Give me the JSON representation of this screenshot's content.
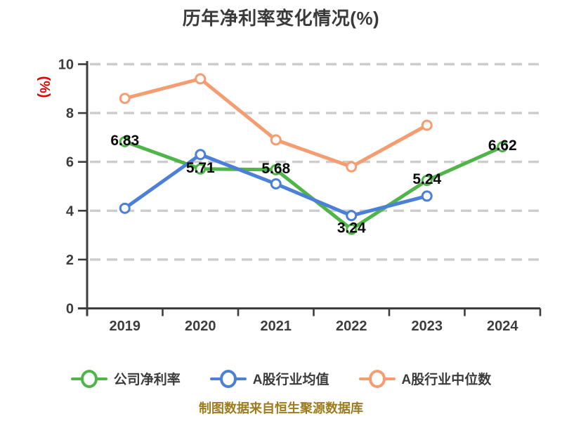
{
  "footer": {
    "text": "制图数据来自恒生聚源数据库"
  },
  "colors": {
    "title_text": "#3A3A3A",
    "axis": "#3C3C3C",
    "tick_label": "#3D3D3D",
    "grid": "#CCCCCC",
    "unit_label": "#E00000",
    "data_label": "#0A0A0A",
    "footer_text": "#9C7C1E",
    "company_series": "#4FB548",
    "industry_mean_series": "#4C80D8",
    "industry_median_series": "#F59D70"
  },
  "chart_data": {
    "type": "line",
    "title": "历年净利率变化情况(%)",
    "xlabel": "",
    "ylabel": "(%)",
    "categories": [
      "2019",
      "2020",
      "2021",
      "2022",
      "2023",
      "2024"
    ],
    "ylim": [
      0,
      10
    ],
    "yticks": [
      0,
      2,
      4,
      6,
      8,
      10
    ],
    "grid": "horizontal-dashed",
    "legend_position": "bottom",
    "series": [
      {
        "name": "公司净利率",
        "color": "#4FB548",
        "values": [
          6.83,
          5.71,
          5.68,
          3.24,
          5.24,
          6.62
        ],
        "show_labels": true,
        "labels": [
          "6.83",
          "5.71",
          "5.68",
          "3.24",
          "5.24",
          "6.62"
        ]
      },
      {
        "name": "A股行业均值",
        "color": "#4C80D8",
        "values": [
          4.1,
          6.3,
          5.1,
          3.8,
          4.6,
          null
        ],
        "show_labels": false
      },
      {
        "name": "A股行业中位数",
        "color": "#F59D70",
        "values": [
          8.6,
          9.4,
          6.9,
          5.8,
          7.5,
          null
        ],
        "show_labels": false
      }
    ]
  }
}
